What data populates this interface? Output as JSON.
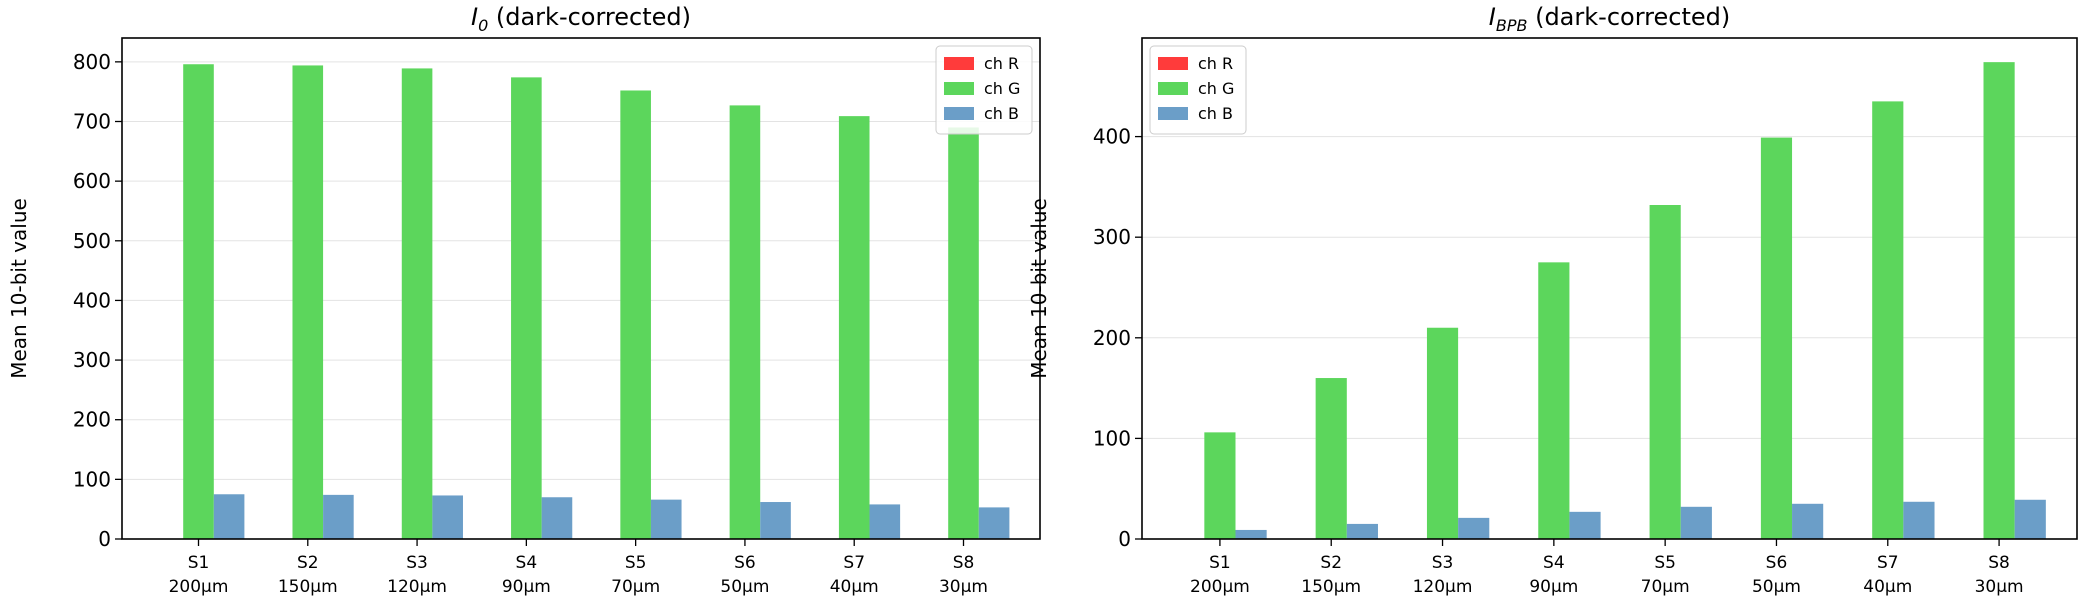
{
  "chart_data": [
    {
      "type": "bar",
      "title": {
        "symbol": "I",
        "subscript": "0",
        "suffix": " (dark-corrected)"
      },
      "ylabel": "Mean 10-bit value",
      "xlabel": "",
      "ylim": [
        0,
        840
      ],
      "yticks": [
        0,
        100,
        200,
        300,
        400,
        500,
        600,
        700,
        800
      ],
      "grid": "horizontal",
      "legend_position": "top-right",
      "categories": [
        [
          "S1",
          "200μm"
        ],
        [
          "S2",
          "150μm"
        ],
        [
          "S3",
          "120μm"
        ],
        [
          "S4",
          "90μm"
        ],
        [
          "S5",
          "70μm"
        ],
        [
          "S6",
          "50μm"
        ],
        [
          "S7",
          "40μm"
        ],
        [
          "S8",
          "30μm"
        ]
      ],
      "series": [
        {
          "name": "ch R",
          "color": "#ff3b3b",
          "values": [
            0,
            0,
            0,
            0,
            0,
            0,
            0,
            0
          ]
        },
        {
          "name": "ch G",
          "color": "#5cd65c",
          "values": [
            796,
            794,
            789,
            774,
            752,
            727,
            709,
            690
          ]
        },
        {
          "name": "ch B",
          "color": "#6b9ec8",
          "values": [
            75,
            74,
            73,
            70,
            66,
            62,
            58,
            53
          ]
        }
      ]
    },
    {
      "type": "bar",
      "title": {
        "symbol": "I",
        "subscript": "BPB",
        "suffix": " (dark-corrected)"
      },
      "ylabel": "Mean 10-bit value",
      "xlabel": "",
      "ylim": [
        0,
        498
      ],
      "yticks": [
        0,
        100,
        200,
        300,
        400
      ],
      "grid": "horizontal",
      "legend_position": "top-left",
      "categories": [
        [
          "S1",
          "200μm"
        ],
        [
          "S2",
          "150μm"
        ],
        [
          "S3",
          "120μm"
        ],
        [
          "S4",
          "90μm"
        ],
        [
          "S5",
          "70μm"
        ],
        [
          "S6",
          "50μm"
        ],
        [
          "S7",
          "40μm"
        ],
        [
          "S8",
          "30μm"
        ]
      ],
      "series": [
        {
          "name": "ch R",
          "color": "#ff3b3b",
          "values": [
            0,
            0,
            0,
            0,
            0,
            0,
            0,
            0
          ]
        },
        {
          "name": "ch G",
          "color": "#5cd65c",
          "values": [
            106,
            160,
            210,
            275,
            332,
            399,
            435,
            474
          ]
        },
        {
          "name": "ch B",
          "color": "#6b9ec8",
          "values": [
            9,
            15,
            21,
            27,
            32,
            35,
            37,
            39
          ]
        }
      ]
    }
  ]
}
